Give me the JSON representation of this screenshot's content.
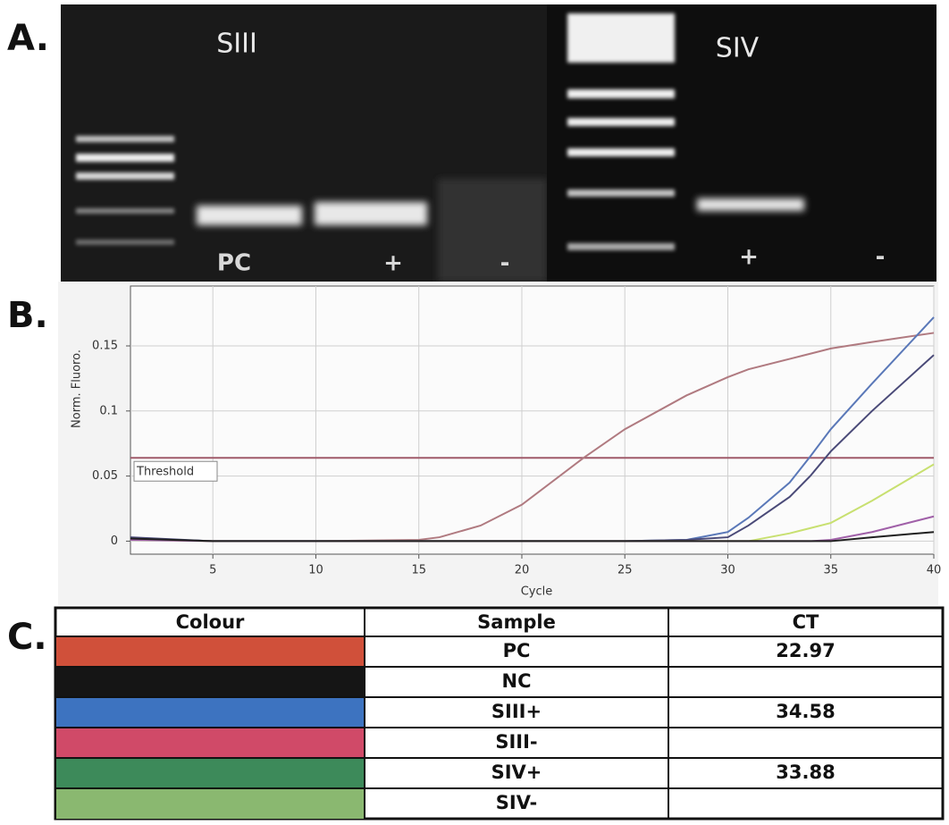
{
  "panel_labels": [
    "A.",
    "B.",
    "C."
  ],
  "gel": {
    "left": {
      "title": "SIII",
      "lanes": [
        "PC",
        "+",
        "-"
      ]
    },
    "right": {
      "title": "SIV",
      "lanes": [
        "+",
        "-"
      ]
    }
  },
  "chart_data": {
    "type": "line",
    "ylabel": "Norm. Fluoro.",
    "xlabel": "Cycle",
    "threshold": 0.064,
    "threshold_label": "Threshold",
    "x": [
      1,
      5,
      10,
      15,
      16,
      18,
      20,
      23,
      25,
      28,
      30,
      31,
      33,
      34,
      35,
      37,
      40
    ],
    "series": [
      {
        "color": "#b07a80",
        "values": [
          0.002,
          0,
          0,
          0.001,
          0.003,
          0.012,
          0.028,
          0.064,
          0.086,
          0.112,
          0.126,
          0.132,
          0.14,
          0.144,
          0.148,
          0.153,
          0.16
        ]
      },
      {
        "color": "#5a78b8",
        "values": [
          0.002,
          0,
          0,
          0,
          0,
          0,
          0,
          0,
          0,
          0.001,
          0.007,
          0.018,
          0.045,
          0.065,
          0.086,
          0.121,
          0.172
        ]
      },
      {
        "color": "#4a4a78",
        "values": [
          0.003,
          0,
          0,
          0,
          0,
          0,
          0,
          0,
          0,
          0.001,
          0.003,
          0.012,
          0.034,
          0.05,
          0.069,
          0.1,
          0.143
        ]
      },
      {
        "color": "#c8e070",
        "values": [
          0.001,
          0,
          0,
          0,
          0,
          0,
          0,
          0,
          0,
          0,
          0,
          0,
          0.006,
          0.01,
          0.014,
          0.031,
          0.059
        ]
      },
      {
        "color": "#a060a8",
        "values": [
          0.001,
          0,
          0,
          0,
          0,
          0,
          0,
          0,
          0,
          0,
          0,
          0,
          0,
          0,
          0.001,
          0.007,
          0.019
        ]
      },
      {
        "color": "#202020",
        "values": [
          0.002,
          0,
          0,
          0,
          0,
          0,
          0,
          0,
          0,
          0,
          0,
          0,
          0,
          0,
          0,
          0.003,
          0.007
        ]
      }
    ],
    "xlim": [
      1,
      40
    ],
    "ylim": [
      -0.01,
      0.196
    ],
    "xticks": [
      5,
      10,
      15,
      20,
      25,
      30,
      35,
      40
    ],
    "yticks": [
      0,
      0.05,
      0.1,
      0.15
    ],
    "grid": true
  },
  "table": {
    "header": [
      "Colour",
      "Sample",
      "CT"
    ],
    "rows": [
      {
        "color": "#d0503a",
        "sample": "PC",
        "ct": 22.97
      },
      {
        "color": "#151515",
        "sample": "NC"
      },
      {
        "color": "#3d73c0",
        "sample": "SIII+",
        "ct": 34.58
      },
      {
        "color": "#d04a68",
        "sample": "SIII-"
      },
      {
        "color": "#3d8a5a",
        "sample": "SIV+",
        "ct": 33.88
      },
      {
        "color": "#8ab870",
        "sample": "SIV-"
      }
    ]
  }
}
